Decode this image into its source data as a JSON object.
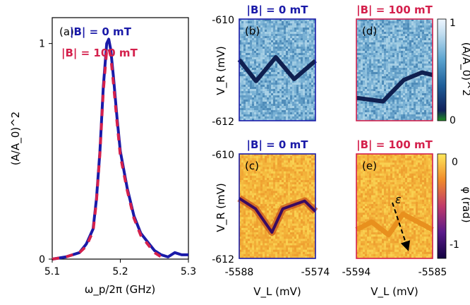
{
  "colors": {
    "b0": "#1a1aa8",
    "b100": "#d4204c",
    "map_amp_low": "#1d8b22",
    "map_amp_high": "#eef6ff",
    "map_phase_low": "#100040",
    "map_phase_high": "#ffe85a"
  },
  "chart_data": [
    {
      "type": "line",
      "panel_label": "(a)",
      "xlabel": "ω_p/2π (GHz)",
      "ylabel": "(A/A_0)^2",
      "xlim": [
        5.1,
        5.3
      ],
      "ylim": [
        0,
        1.12
      ],
      "x_ticks": [
        "5.1",
        "5.2",
        "5.3"
      ],
      "y_ticks": [
        "0",
        "1"
      ],
      "legend": [
        {
          "label": "|B| = 0 mT",
          "color": "#1a1aa8"
        },
        {
          "label": "|B| = 100 mT",
          "color": "#d4204c"
        }
      ],
      "series": [
        {
          "name": "|B| = 0 mT",
          "x": [
            5.1,
            5.12,
            5.14,
            5.15,
            5.16,
            5.165,
            5.17,
            5.175,
            5.18,
            5.183,
            5.186,
            5.19,
            5.195,
            5.2,
            5.21,
            5.22,
            5.23,
            5.24,
            5.25,
            5.26,
            5.27,
            5.28,
            5.29,
            5.3
          ],
          "y": [
            0.0,
            0.01,
            0.03,
            0.07,
            0.14,
            0.28,
            0.5,
            0.8,
            1.0,
            1.02,
            0.97,
            0.84,
            0.66,
            0.5,
            0.33,
            0.2,
            0.12,
            0.08,
            0.04,
            0.02,
            0.01,
            0.03,
            0.02,
            0.02
          ]
        },
        {
          "name": "|B| = 100 mT",
          "dashed": true,
          "x": [
            5.1,
            5.12,
            5.14,
            5.15,
            5.16,
            5.165,
            5.17,
            5.175,
            5.18,
            5.183,
            5.186,
            5.19,
            5.195,
            5.2,
            5.21,
            5.22,
            5.23,
            5.24,
            5.25,
            5.26
          ],
          "y": [
            0.0,
            0.01,
            0.03,
            0.06,
            0.13,
            0.27,
            0.49,
            0.78,
            0.97,
            0.98,
            0.94,
            0.81,
            0.64,
            0.48,
            0.32,
            0.19,
            0.11,
            0.07,
            0.03,
            0.01
          ]
        }
      ]
    },
    {
      "type": "heatmap",
      "panel_label": "(b)",
      "title": "|B| = 0 mT",
      "quantity": "amplitude",
      "ylabel": "V_R (mV)",
      "ylim": [
        -612,
        -610
      ],
      "y_ticks": [
        "-610",
        "-612"
      ],
      "feature": {
        "x": [
          0,
          0.22,
          0.48,
          0.72,
          1.0
        ],
        "y": [
          -610.8,
          -611.22,
          -610.75,
          -611.18,
          -610.82
        ]
      }
    },
    {
      "type": "heatmap",
      "panel_label": "(d)",
      "title": "|B| = 100 mT",
      "quantity": "amplitude",
      "ylim": [
        -612,
        -610
      ],
      "feature": {
        "x": [
          0,
          0.35,
          0.62,
          0.86,
          1.0
        ],
        "y": [
          -611.55,
          -611.62,
          -611.2,
          -611.05,
          -611.1
        ]
      },
      "colorbar": {
        "label": "(A/A_0)^2",
        "ticks": [
          "1",
          "0"
        ],
        "range": [
          0,
          1
        ]
      }
    },
    {
      "type": "heatmap",
      "panel_label": "(c)",
      "title": "|B| = 0 mT",
      "quantity": "phase",
      "xlabel": "V_L (mV)",
      "ylabel": "V_R (mV)",
      "xlim": [
        -5588,
        -5574
      ],
      "ylim": [
        -612,
        -610
      ],
      "x_ticks": [
        "-5588",
        "-5574"
      ],
      "y_ticks": [
        "-610",
        "-612"
      ],
      "feature": {
        "x": [
          -5588,
          -5585,
          -5582,
          -5580,
          -5576,
          -5574
        ],
        "y": [
          -610.85,
          -611.05,
          -611.5,
          -611.05,
          -610.9,
          -611.1
        ]
      }
    },
    {
      "type": "heatmap",
      "panel_label": "(e)",
      "title": "|B| = 100 mT",
      "quantity": "phase",
      "xlabel": "V_L (mV)",
      "xlim": [
        -5594,
        -5585
      ],
      "ylim": [
        -612,
        -610
      ],
      "x_ticks": [
        "-5594",
        "-5585"
      ],
      "annotation": "ε",
      "feature": {
        "x": [
          -5594,
          -5592.2,
          -5590.2,
          -5588.5,
          -5585
        ],
        "y": [
          -611.45,
          -611.3,
          -611.55,
          -611.15,
          -611.45
        ]
      },
      "colorbar": {
        "label": "φ (rad)",
        "ticks": [
          "0",
          "-1"
        ],
        "range": [
          -1.3,
          0.15
        ]
      }
    }
  ]
}
